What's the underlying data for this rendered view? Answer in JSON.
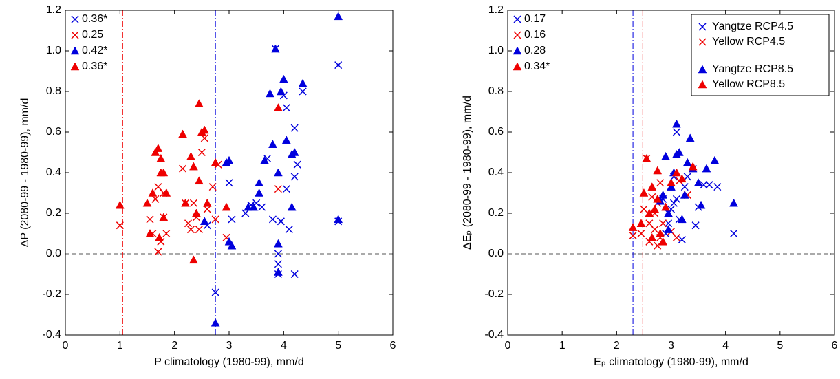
{
  "chart_data": [
    {
      "type": "scatter",
      "xlabel": "P climatology (1980-99), mm/d",
      "ylabel": "ΔP (2080-99 - 1980-99), mm/d",
      "xlim": [
        0,
        6
      ],
      "ylim": [
        -0.4,
        1.2
      ],
      "xticks": [
        0,
        1,
        2,
        3,
        4,
        5,
        6
      ],
      "yticks": [
        -0.4,
        -0.2,
        {
          "value": 0,
          "label": "0.0"
        },
        0.2,
        0.4,
        0.6,
        0.8,
        {
          "value": 1,
          "label": "1.0"
        },
        1.2
      ],
      "hline": 0,
      "vlines": [
        {
          "x": 1.05,
          "color": "#ee0000"
        },
        {
          "x": 2.75,
          "color": "#0000dd"
        }
      ],
      "legend": false,
      "series": [
        {
          "color": "#0000dd",
          "marker": "x",
          "corr": "0.36*",
          "x": [
            2.75,
            2.6,
            3.0,
            3.05,
            3.3,
            3.4,
            3.5,
            3.6,
            3.7,
            3.8,
            3.85,
            3.9,
            3.9,
            3.95,
            4.0,
            4.05,
            4.05,
            4.1,
            4.2,
            4.2,
            4.2,
            4.25,
            4.35,
            5.0,
            5.0,
            3.9
          ],
          "y": [
            -0.19,
            0.14,
            0.35,
            0.17,
            0.2,
            0.24,
            0.25,
            0.23,
            0.47,
            0.17,
            1.01,
            -0.1,
            0.0,
            0.16,
            0.78,
            0.72,
            0.32,
            0.12,
            0.62,
            0.38,
            -0.1,
            0.44,
            0.8,
            0.93,
            0.16,
            -0.05
          ]
        },
        {
          "color": "#ee0000",
          "marker": "x",
          "corr": "0.25",
          "x": [
            1.0,
            1.55,
            1.6,
            1.65,
            1.7,
            1.7,
            1.75,
            1.8,
            1.8,
            1.85,
            2.15,
            2.2,
            2.25,
            2.3,
            2.35,
            2.4,
            2.45,
            2.5,
            2.55,
            2.6,
            2.75,
            2.8,
            2.95,
            3.9,
            2.7
          ],
          "y": [
            0.14,
            0.17,
            0.1,
            0.27,
            0.01,
            0.33,
            0.06,
            0.3,
            0.18,
            0.1,
            0.42,
            0.25,
            0.15,
            0.12,
            0.25,
            0.18,
            0.12,
            0.5,
            0.57,
            0.22,
            0.17,
            0.44,
            0.08,
            0.32,
            0.33
          ]
        },
        {
          "color": "#0000dd",
          "marker": "triangle",
          "corr": "0.42*",
          "x": [
            2.75,
            2.55,
            2.95,
            3.0,
            3.0,
            3.05,
            3.35,
            3.45,
            3.55,
            3.55,
            3.65,
            3.75,
            3.8,
            3.85,
            3.9,
            3.9,
            3.9,
            3.95,
            4.0,
            4.05,
            4.15,
            4.15,
            4.2,
            4.35,
            5.0,
            5.0
          ],
          "y": [
            -0.34,
            0.16,
            0.45,
            0.46,
            0.06,
            0.04,
            0.23,
            0.23,
            0.3,
            0.35,
            0.46,
            0.79,
            0.54,
            1.01,
            -0.09,
            0.05,
            0.4,
            0.8,
            0.86,
            0.56,
            0.23,
            0.49,
            0.5,
            0.84,
            1.17,
            0.17
          ]
        },
        {
          "color": "#ee0000",
          "marker": "triangle",
          "corr": "0.36*",
          "x": [
            1.0,
            1.5,
            1.55,
            1.6,
            1.65,
            1.7,
            1.72,
            1.75,
            1.75,
            1.8,
            1.85,
            1.8,
            2.15,
            2.2,
            2.3,
            2.35,
            2.35,
            2.4,
            2.45,
            2.5,
            2.55,
            2.6,
            2.75,
            2.95,
            3.9,
            2.45
          ],
          "y": [
            0.24,
            0.25,
            0.1,
            0.3,
            0.5,
            0.52,
            0.08,
            0.4,
            0.47,
            0.18,
            0.3,
            0.4,
            0.59,
            0.25,
            0.48,
            -0.03,
            0.43,
            0.2,
            0.74,
            0.6,
            0.61,
            0.25,
            0.45,
            0.23,
            0.72,
            0.36
          ]
        }
      ]
    },
    {
      "type": "scatter",
      "xlabel": "Eₚ climatology (1980-99), mm/d",
      "ylabel": "ΔEₚ (2080-99 - 1980-99), mm/d",
      "xlim": [
        0,
        6
      ],
      "ylim": [
        -0.4,
        1.2
      ],
      "xticks": [
        0,
        1,
        2,
        3,
        4,
        5,
        6
      ],
      "yticks": [
        -0.4,
        -0.2,
        {
          "value": 0,
          "label": "0.0"
        },
        0.2,
        0.4,
        0.6,
        0.8,
        {
          "value": 1,
          "label": "1.0"
        },
        1.2
      ],
      "hline": 0,
      "vlines": [
        {
          "x": 2.3,
          "color": "#0000dd"
        },
        {
          "x": 2.48,
          "color": "#ee0000"
        }
      ],
      "legend": "upper right",
      "series": [
        {
          "name": "Yangtze RCP4.5",
          "color": "#0000dd",
          "marker": "x",
          "corr": "0.17",
          "x": [
            2.85,
            2.9,
            2.95,
            3.0,
            3.05,
            3.1,
            3.1,
            3.15,
            3.2,
            3.25,
            3.3,
            3.4,
            3.45,
            3.5,
            3.6,
            3.7,
            3.85,
            4.15,
            2.95,
            3.05
          ],
          "y": [
            0.27,
            0.1,
            0.2,
            0.22,
            0.38,
            0.6,
            0.27,
            0.17,
            0.07,
            0.33,
            0.38,
            0.42,
            0.14,
            0.23,
            0.34,
            0.34,
            0.33,
            0.1,
            0.15,
            0.25
          ]
        },
        {
          "name": "Yellow RCP4.5",
          "color": "#ee0000",
          "marker": "x",
          "corr": "0.16",
          "x": [
            2.3,
            2.45,
            2.5,
            2.55,
            2.6,
            2.65,
            2.7,
            2.75,
            2.8,
            2.8,
            2.85,
            3.0,
            3.1,
            3.15,
            3.3,
            2.6,
            2.7,
            2.75
          ],
          "y": [
            0.09,
            0.1,
            0.22,
            0.47,
            0.15,
            0.28,
            0.12,
            0.04,
            0.08,
            0.35,
            0.15,
            0.11,
            0.08,
            0.36,
            0.29,
            0.06,
            0.2,
            0.25
          ]
        },
        {
          "name": "Yangtze RCP8.5",
          "color": "#0000dd",
          "marker": "triangle",
          "corr": "0.28",
          "x": [
            2.8,
            2.85,
            2.9,
            2.95,
            3.0,
            3.05,
            3.1,
            3.1,
            3.15,
            3.2,
            3.25,
            3.3,
            3.35,
            3.4,
            3.5,
            3.55,
            3.65,
            3.8,
            4.15,
            2.95
          ],
          "y": [
            0.26,
            0.29,
            0.48,
            0.12,
            0.33,
            0.4,
            0.64,
            0.49,
            0.5,
            0.17,
            0.29,
            0.45,
            0.57,
            0.42,
            0.35,
            0.24,
            0.42,
            0.46,
            0.25,
            0.2
          ]
        },
        {
          "name": "Yellow RCP8.5",
          "color": "#ee0000",
          "marker": "triangle",
          "corr": "0.34*",
          "x": [
            2.3,
            2.45,
            2.5,
            2.55,
            2.6,
            2.65,
            2.7,
            2.75,
            2.8,
            2.85,
            2.9,
            3.0,
            3.1,
            3.2,
            3.4,
            2.65,
            2.75
          ],
          "y": [
            0.13,
            0.15,
            0.3,
            0.47,
            0.2,
            0.33,
            0.22,
            0.41,
            0.1,
            0.06,
            0.23,
            0.35,
            0.4,
            0.37,
            0.43,
            0.08,
            0.27
          ]
        }
      ]
    }
  ]
}
